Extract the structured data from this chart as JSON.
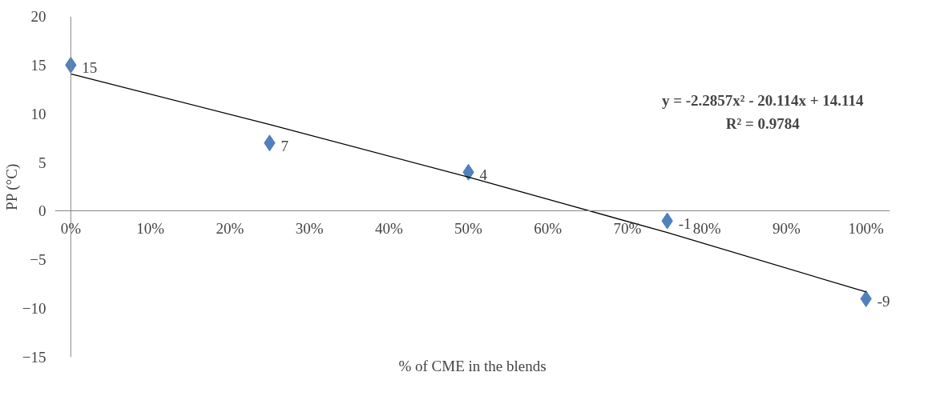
{
  "chart_data": {
    "type": "scatter",
    "xlabel": "% of CME in the blends",
    "ylabel": "PP (°C)",
    "x": [
      0,
      0.25,
      0.5,
      0.75,
      1
    ],
    "series": [
      {
        "color": "#4f81bd",
        "values": [
          15,
          7,
          4,
          -1,
          -9
        ],
        "marker": "diamond",
        "data_labels": true
      },
      {
        "type": "line",
        "color": "#000000",
        "x": [
          0,
          0.25,
          0.5,
          0.75,
          1
        ],
        "values": [
          14.1,
          8.9,
          3.5,
          -2.2,
          -8.3
        ]
      }
    ],
    "xlim": [
      -0.02,
      1.03
    ],
    "ylim": [
      -15,
      20
    ],
    "xticks": [
      {
        "value": 0,
        "label": "0%"
      },
      {
        "value": 0.1,
        "label": "10%"
      },
      {
        "value": 0.2,
        "label": "20%"
      },
      {
        "value": 0.3,
        "label": "30%"
      },
      {
        "value": 0.4,
        "label": "40%"
      },
      {
        "value": 0.5,
        "label": "50%"
      },
      {
        "value": 0.6,
        "label": "60%"
      },
      {
        "value": 0.7,
        "label": "70%"
      },
      {
        "value": 0.8,
        "label": "80%"
      },
      {
        "value": 0.9,
        "label": "90%"
      },
      {
        "value": 1,
        "label": "100%"
      }
    ],
    "yticks": [
      -15,
      -10,
      -5,
      0,
      5,
      10,
      15,
      20
    ],
    "grid": false,
    "annotations": [
      "y = -2.2857x² - 20.114x + 14.114",
      "R² = 0.9784"
    ]
  }
}
